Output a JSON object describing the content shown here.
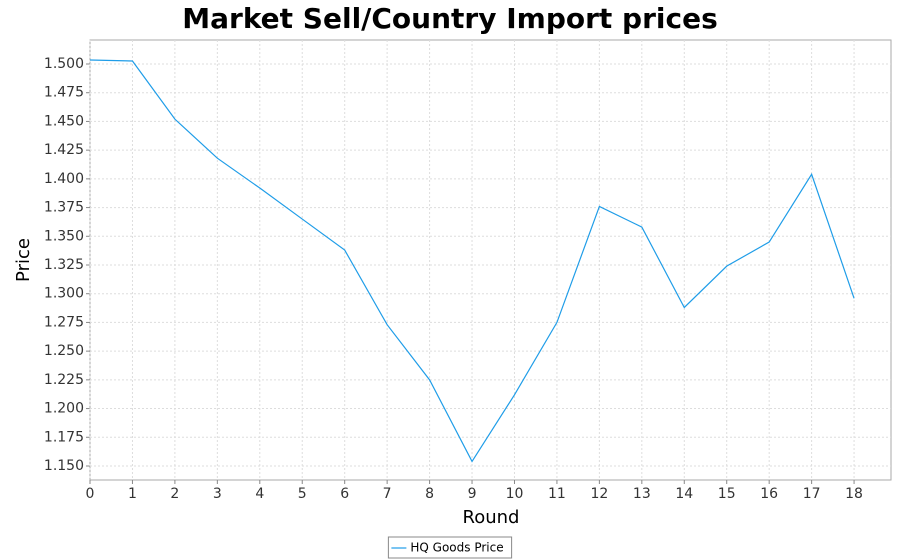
{
  "chart_data": {
    "type": "line",
    "title": "Market Sell/Country Import prices",
    "x_label": "Round",
    "y_label": "Price",
    "x": [
      0,
      1,
      2,
      3,
      4,
      5,
      6,
      7,
      8,
      9,
      10,
      11,
      12,
      13,
      14,
      15,
      16,
      17,
      18
    ],
    "series": [
      {
        "name": "HQ Goods Price",
        "color": "#1f9de8",
        "values": [
          1.5035,
          1.5026,
          1.452,
          1.418,
          1.392,
          1.365,
          1.338,
          1.273,
          1.225,
          1.154,
          1.212,
          1.275,
          1.376,
          1.358,
          1.288,
          1.324,
          1.345,
          1.404,
          1.296
        ]
      }
    ],
    "xlim": [
      0,
      18.87
    ],
    "xticks": [
      0,
      1,
      2,
      3,
      4,
      5,
      6,
      7,
      8,
      9,
      10,
      11,
      12,
      13,
      14,
      15,
      16,
      17,
      18
    ],
    "ylim": [
      1.1378,
      1.5209
    ],
    "yticks": [
      {
        "value": 1.15,
        "label": "1.150"
      },
      {
        "value": 1.175,
        "label": "1.175"
      },
      {
        "value": 1.2,
        "label": "1.200"
      },
      {
        "value": 1.225,
        "label": "1.225"
      },
      {
        "value": 1.25,
        "label": "1.250"
      },
      {
        "value": 1.275,
        "label": "1.275"
      },
      {
        "value": 1.3,
        "label": "1.300"
      },
      {
        "value": 1.325,
        "label": "1.325"
      },
      {
        "value": 1.35,
        "label": "1.350"
      },
      {
        "value": 1.375,
        "label": "1.375"
      },
      {
        "value": 1.4,
        "label": "1.400"
      },
      {
        "value": 1.425,
        "label": "1.425"
      },
      {
        "value": 1.45,
        "label": "1.450"
      },
      {
        "value": 1.475,
        "label": "1.475"
      },
      {
        "value": 1.5,
        "label": "1.500"
      }
    ],
    "grid": true,
    "legend": "bottom"
  }
}
